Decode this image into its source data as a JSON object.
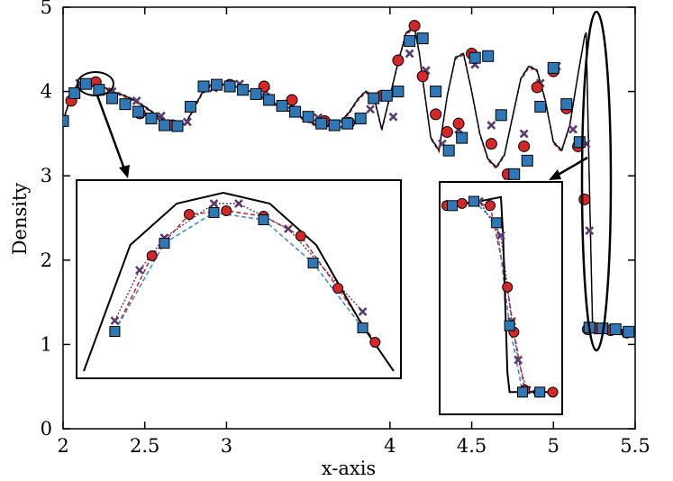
{
  "chart_data": {
    "type": "line",
    "title": "",
    "xlabel": "x-axis",
    "ylabel": "Density",
    "x_ticks": [
      "2",
      "2.5",
      "3",
      "4",
      "4.5",
      "5",
      "5.5"
    ],
    "y_ticks": [
      "0",
      "1",
      "2",
      "3",
      "4",
      "5"
    ],
    "xlim": [
      2,
      5.5
    ],
    "ylim": [
      0,
      5
    ],
    "grid": false,
    "legend": "none",
    "colors": {
      "reference": "#000000",
      "cross": "#5a3a70",
      "circle": "#d62728",
      "square": "#2e78b8",
      "circle_line": "#d62728",
      "square_line": "#3a8fd0"
    },
    "series": [
      {
        "marker": "line",
        "x": [
          2.0,
          2.04,
          2.08,
          2.12,
          2.16,
          2.2,
          2.25,
          2.3,
          2.35,
          2.4,
          2.45,
          2.5,
          2.55,
          2.6,
          2.65,
          2.7,
          2.75,
          2.8,
          2.85,
          2.9,
          2.95,
          3.0,
          3.05,
          3.1,
          3.15,
          3.2,
          3.25,
          3.3,
          3.35,
          3.4,
          3.45,
          3.5,
          3.55,
          3.6,
          3.65,
          3.7,
          3.75,
          3.8,
          3.85,
          3.9,
          3.95,
          4.0,
          4.05,
          4.1,
          4.15,
          4.18,
          4.2,
          4.25,
          4.3,
          4.35,
          4.4,
          4.45,
          4.5,
          4.55,
          4.6,
          4.65,
          4.7,
          4.75,
          4.8,
          4.85,
          4.9,
          4.95,
          5.0,
          5.05,
          5.1,
          5.15,
          5.19,
          5.2,
          5.22,
          5.24,
          5.28,
          5.3,
          5.35,
          5.4,
          5.45,
          5.5
        ],
        "y": [
          3.65,
          3.9,
          4.06,
          4.1,
          4.12,
          4.1,
          4.05,
          4.0,
          3.97,
          3.93,
          3.88,
          3.82,
          3.75,
          3.68,
          3.62,
          3.6,
          3.62,
          3.8,
          3.98,
          4.07,
          4.09,
          4.08,
          4.06,
          4.03,
          4.0,
          3.95,
          3.9,
          3.85,
          3.8,
          3.75,
          3.7,
          3.65,
          3.6,
          3.58,
          3.6,
          3.65,
          3.75,
          3.9,
          4.0,
          3.95,
          3.55,
          3.95,
          4.35,
          4.7,
          4.75,
          4.45,
          4.15,
          3.45,
          3.3,
          3.95,
          4.4,
          4.45,
          4.0,
          3.5,
          3.2,
          3.1,
          3.25,
          3.7,
          4.15,
          4.3,
          4.25,
          3.9,
          3.4,
          3.3,
          3.6,
          4.2,
          4.65,
          4.7,
          2.9,
          1.18,
          1.18,
          1.19,
          1.2,
          1.18,
          1.16,
          1.14
        ]
      },
      {
        "marker": "circle",
        "x": [
          2.0,
          2.05,
          2.2,
          2.47,
          2.67,
          3.02,
          3.23,
          3.4,
          3.6,
          3.75,
          3.95,
          4.05,
          4.15,
          4.2,
          4.28,
          4.35,
          4.42,
          4.5,
          4.62,
          4.72,
          4.82,
          4.9,
          5.0,
          5.08,
          5.15,
          5.19,
          5.21,
          5.26,
          5.35,
          5.45
        ],
        "y": [
          3.65,
          3.89,
          4.11,
          3.74,
          3.6,
          4.08,
          4.06,
          3.9,
          3.65,
          3.63,
          3.95,
          4.37,
          4.78,
          4.18,
          3.73,
          3.52,
          3.62,
          4.45,
          3.38,
          3.02,
          3.35,
          4.05,
          4.24,
          3.8,
          3.35,
          2.72,
          1.18,
          1.19,
          1.17,
          1.14
        ]
      },
      {
        "marker": "square",
        "x": [
          2.0,
          2.07,
          2.14,
          2.22,
          2.3,
          2.38,
          2.46,
          2.54,
          2.62,
          2.7,
          2.78,
          2.86,
          2.94,
          3.02,
          3.1,
          3.18,
          3.26,
          3.34,
          3.42,
          3.5,
          3.58,
          3.66,
          3.74,
          3.82,
          3.9,
          3.98,
          4.05,
          4.12,
          4.2,
          4.28,
          4.36,
          4.44,
          4.52,
          4.6,
          4.68,
          4.76,
          4.84,
          4.92,
          5.0,
          5.08,
          5.16,
          5.22,
          5.3,
          5.38,
          5.46
        ],
        "y": [
          3.65,
          3.98,
          4.09,
          4.02,
          3.92,
          3.85,
          3.76,
          3.68,
          3.6,
          3.59,
          3.82,
          4.06,
          4.08,
          4.06,
          4.02,
          3.97,
          3.9,
          3.83,
          3.76,
          3.7,
          3.62,
          3.6,
          3.62,
          3.68,
          3.92,
          3.95,
          4.0,
          4.6,
          4.63,
          4.0,
          3.3,
          3.45,
          4.4,
          4.42,
          3.72,
          3.02,
          3.18,
          3.82,
          4.28,
          3.85,
          3.4,
          1.2,
          1.19,
          1.18,
          1.15
        ]
      },
      {
        "marker": "cross",
        "x": [
          2.1,
          2.3,
          2.45,
          2.6,
          2.76,
          2.92,
          3.08,
          3.24,
          3.4,
          3.56,
          3.72,
          3.88,
          4.02,
          4.12,
          4.22,
          4.32,
          4.42,
          4.52,
          4.62,
          4.72,
          4.82,
          4.92,
          5.02,
          5.12,
          5.2,
          5.22,
          5.3,
          5.42
        ],
        "y": [
          4.1,
          4.0,
          3.89,
          3.71,
          3.64,
          4.04,
          4.09,
          4.0,
          3.84,
          3.69,
          3.61,
          3.79,
          3.7,
          4.45,
          4.25,
          3.38,
          3.55,
          4.32,
          3.6,
          3.0,
          3.5,
          4.1,
          4.3,
          3.55,
          3.38,
          2.35,
          1.18,
          1.16
        ]
      }
    ],
    "insets": [
      {
        "region": "peak near x=2.2",
        "series": {
          "reference": [
            [
              0.0,
              0.0
            ],
            [
              0.15,
              0.7
            ],
            [
              0.3,
              0.93
            ],
            [
              0.45,
              0.99
            ],
            [
              0.6,
              0.93
            ],
            [
              0.75,
              0.7
            ],
            [
              0.9,
              0.25
            ],
            [
              1.0,
              0.0
            ]
          ],
          "circle": [
            [
              0.1,
              0.22
            ],
            [
              0.22,
              0.64
            ],
            [
              0.34,
              0.87
            ],
            [
              0.46,
              0.89
            ],
            [
              0.58,
              0.86
            ],
            [
              0.7,
              0.75
            ],
            [
              0.82,
              0.46
            ],
            [
              0.94,
              0.16
            ]
          ],
          "square": [
            [
              0.1,
              0.22
            ],
            [
              0.26,
              0.71
            ],
            [
              0.42,
              0.88
            ],
            [
              0.58,
              0.84
            ],
            [
              0.74,
              0.6
            ],
            [
              0.9,
              0.24
            ]
          ],
          "cross": [
            [
              0.1,
              0.28
            ],
            [
              0.18,
              0.56
            ],
            [
              0.26,
              0.74
            ],
            [
              0.42,
              0.93
            ],
            [
              0.5,
              0.93
            ],
            [
              0.66,
              0.79
            ],
            [
              0.9,
              0.33
            ]
          ]
        }
      },
      {
        "region": "shock near x=5.2",
        "series": {
          "reference": [
            [
              0.0,
              0.94
            ],
            [
              0.3,
              0.96
            ],
            [
              0.5,
              0.98
            ],
            [
              0.52,
              0.8
            ],
            [
              0.56,
              0.16
            ],
            [
              0.58,
              0.07
            ],
            [
              1.0,
              0.07
            ]
          ],
          "circle": [
            [
              0.0,
              0.94
            ],
            [
              0.14,
              0.95
            ],
            [
              0.4,
              0.94
            ],
            [
              0.56,
              0.56
            ],
            [
              0.62,
              0.35
            ],
            [
              0.72,
              0.08
            ],
            [
              0.85,
              0.07
            ],
            [
              0.98,
              0.07
            ]
          ],
          "square": [
            [
              0.05,
              0.94
            ],
            [
              0.25,
              0.96
            ],
            [
              0.46,
              0.86
            ],
            [
              0.58,
              0.38
            ],
            [
              0.7,
              0.07
            ],
            [
              0.86,
              0.07
            ]
          ],
          "cross": [
            [
              0.3,
              0.96
            ],
            [
              0.5,
              0.8
            ],
            [
              0.6,
              0.4
            ],
            [
              0.66,
              0.22
            ],
            [
              0.74,
              0.08
            ]
          ]
        }
      }
    ]
  }
}
